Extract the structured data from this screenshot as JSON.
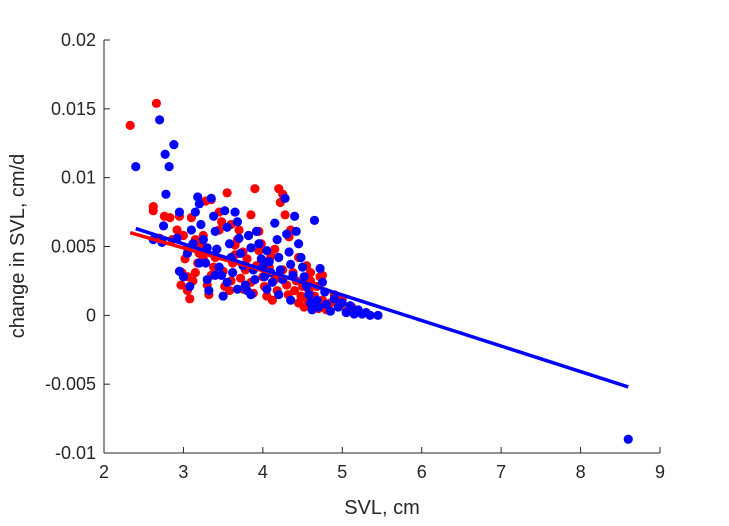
{
  "chart_data": {
    "type": "scatter",
    "title": "",
    "xlabel": "SVL, cm",
    "ylabel": "change in SVL, cm/d",
    "xlim": [
      2,
      9
    ],
    "ylim": [
      -0.01,
      0.02
    ],
    "xticks": [
      2,
      3,
      4,
      5,
      6,
      7,
      8,
      9
    ],
    "xtick_labels": [
      "2",
      "3",
      "4",
      "5",
      "6",
      "7",
      "8",
      "9"
    ],
    "yticks": [
      -0.01,
      -0.005,
      0,
      0.005,
      0.01,
      0.015,
      0.02
    ],
    "ytick_labels": [
      "-0.01",
      "-0.005",
      "0",
      "0.005",
      "0.01",
      "0.015",
      "0.02"
    ],
    "grid": false,
    "legend": "none",
    "series": [
      {
        "color": "#ff0000",
        "points": [
          [
            2.33,
            0.0138
          ],
          [
            2.66,
            0.0154
          ],
          [
            2.62,
            0.0079
          ],
          [
            2.62,
            0.0076
          ],
          [
            2.76,
            0.0072
          ],
          [
            2.83,
            0.0071
          ],
          [
            2.7,
            0.0056
          ],
          [
            2.86,
            0.0055
          ],
          [
            2.95,
            0.0072
          ],
          [
            2.92,
            0.0062
          ],
          [
            3.0,
            0.0058
          ],
          [
            3.02,
            0.0041
          ],
          [
            2.98,
            0.0031
          ],
          [
            3.05,
            0.0028
          ],
          [
            2.97,
            0.0022
          ],
          [
            3.05,
            0.0018
          ],
          [
            3.08,
            0.0012
          ],
          [
            3.12,
            0.0025
          ],
          [
            3.15,
            0.0031
          ],
          [
            3.18,
            0.0038
          ],
          [
            3.2,
            0.0045
          ],
          [
            3.22,
            0.0052
          ],
          [
            3.25,
            0.0058
          ],
          [
            3.28,
            0.0083
          ],
          [
            3.3,
            0.0022
          ],
          [
            3.32,
            0.0015
          ],
          [
            3.35,
            0.0029
          ],
          [
            3.38,
            0.0035
          ],
          [
            3.4,
            0.0042
          ],
          [
            3.42,
            0.0048
          ],
          [
            3.45,
            0.0075
          ],
          [
            3.48,
            0.0068
          ],
          [
            3.5,
            0.0032
          ],
          [
            3.52,
            0.0021
          ],
          [
            3.55,
            0.0089
          ],
          [
            3.58,
            0.0018
          ],
          [
            3.6,
            0.0025
          ],
          [
            3.62,
            0.0038
          ],
          [
            3.65,
            0.0044
          ],
          [
            3.68,
            0.0055
          ],
          [
            3.7,
            0.0062
          ],
          [
            3.72,
            0.0027
          ],
          [
            3.75,
            0.0019
          ],
          [
            3.78,
            0.0033
          ],
          [
            3.8,
            0.0041
          ],
          [
            3.82,
            0.0058
          ],
          [
            3.85,
            0.0024
          ],
          [
            3.88,
            0.0016
          ],
          [
            3.9,
            0.0092
          ],
          [
            3.92,
            0.0036
          ],
          [
            3.95,
            0.0047
          ],
          [
            3.98,
            0.0052
          ],
          [
            4.0,
            0.0028
          ],
          [
            4.02,
            0.0021
          ],
          [
            4.05,
            0.0014
          ],
          [
            4.08,
            0.0035
          ],
          [
            4.1,
            0.0043
          ],
          [
            4.12,
            0.0011
          ],
          [
            4.15,
            0.0026
          ],
          [
            4.18,
            0.0018
          ],
          [
            4.2,
            0.0092
          ],
          [
            4.22,
            0.0082
          ],
          [
            4.25,
            0.0088
          ],
          [
            4.28,
            0.0073
          ],
          [
            4.3,
            0.0022
          ],
          [
            4.32,
            0.0015
          ],
          [
            4.35,
            0.0062
          ],
          [
            4.38,
            0.0031
          ],
          [
            4.4,
            0.0018
          ],
          [
            4.42,
            0.0025
          ],
          [
            4.45,
            0.0009
          ],
          [
            4.48,
            0.0014
          ],
          [
            4.5,
            0.0021
          ],
          [
            4.52,
            0.0006
          ],
          [
            4.55,
            0.0012
          ],
          [
            4.58,
            0.0018
          ],
          [
            4.6,
            0.0025
          ],
          [
            4.62,
            0.0008
          ],
          [
            4.65,
            0.0014
          ],
          [
            4.68,
            0.0021
          ],
          [
            4.7,
            0.0005
          ],
          [
            4.72,
            0.0028
          ],
          [
            4.75,
            0.0011
          ],
          [
            4.78,
            0.0017
          ],
          [
            4.8,
            0.0004
          ],
          [
            4.85,
            0.0009
          ],
          [
            4.9,
            0.0015
          ],
          [
            4.95,
            0.0007
          ],
          [
            5.0,
            0.0012
          ],
          [
            5.05,
            0.0003
          ],
          [
            5.12,
            0.0006
          ],
          [
            3.1,
            0.0071
          ],
          [
            3.35,
            0.0084
          ],
          [
            3.6,
            0.0066
          ],
          [
            3.85,
            0.0073
          ],
          [
            4.33,
            0.0057
          ],
          [
            4.15,
            0.0048
          ],
          [
            3.95,
            0.0061
          ],
          [
            4.05,
            0.0039
          ],
          [
            4.25,
            0.0033
          ],
          [
            4.45,
            0.0042
          ],
          [
            4.55,
            0.0036
          ],
          [
            4.6,
            0.0031
          ],
          [
            4.75,
            0.0029
          ],
          [
            3.05,
            0.0049
          ],
          [
            3.15,
            0.0055
          ],
          [
            3.25,
            0.0041
          ],
          [
            3.45,
            0.0062
          ],
          [
            3.65,
            0.0051
          ],
          [
            3.75,
            0.0046
          ]
        ],
        "fit": {
          "x": [
            2.33,
            4.75
          ],
          "y": [
            0.006,
            0.002
          ]
        }
      },
      {
        "color": "#0000ff",
        "points": [
          [
            2.4,
            0.0108
          ],
          [
            2.7,
            0.0142
          ],
          [
            2.77,
            0.0117
          ],
          [
            2.82,
            0.0108
          ],
          [
            2.88,
            0.0124
          ],
          [
            2.78,
            0.0088
          ],
          [
            2.75,
            0.0065
          ],
          [
            2.73,
            0.0053
          ],
          [
            2.62,
            0.0055
          ],
          [
            2.95,
            0.0075
          ],
          [
            2.92,
            0.0056
          ],
          [
            2.95,
            0.0032
          ],
          [
            3.0,
            0.0028
          ],
          [
            3.05,
            0.0045
          ],
          [
            3.08,
            0.0021
          ],
          [
            3.12,
            0.0052
          ],
          [
            3.15,
            0.0075
          ],
          [
            3.18,
            0.0086
          ],
          [
            3.2,
            0.0081
          ],
          [
            3.22,
            0.0066
          ],
          [
            3.25,
            0.0055
          ],
          [
            3.28,
            0.0038
          ],
          [
            3.3,
            0.0026
          ],
          [
            3.32,
            0.0018
          ],
          [
            3.35,
            0.0085
          ],
          [
            3.38,
            0.0072
          ],
          [
            3.4,
            0.0061
          ],
          [
            3.42,
            0.0048
          ],
          [
            3.45,
            0.0035
          ],
          [
            3.48,
            0.0029
          ],
          [
            3.5,
            0.0014
          ],
          [
            3.52,
            0.0076
          ],
          [
            3.55,
            0.0064
          ],
          [
            3.58,
            0.0052
          ],
          [
            3.6,
            0.0042
          ],
          [
            3.62,
            0.0031
          ],
          [
            3.65,
            0.0075
          ],
          [
            3.68,
            0.0068
          ],
          [
            3.7,
            0.0056
          ],
          [
            3.72,
            0.0045
          ],
          [
            3.75,
            0.0036
          ],
          [
            3.78,
            0.0022
          ],
          [
            3.8,
            0.0018
          ],
          [
            3.82,
            0.0058
          ],
          [
            3.85,
            0.0049
          ],
          [
            3.88,
            0.0033
          ],
          [
            3.9,
            0.0026
          ],
          [
            3.92,
            0.0061
          ],
          [
            3.95,
            0.0052
          ],
          [
            3.98,
            0.0041
          ],
          [
            4.0,
            0.0035
          ],
          [
            4.02,
            0.0028
          ],
          [
            4.05,
            0.0047
          ],
          [
            4.08,
            0.0039
          ],
          [
            4.1,
            0.0031
          ],
          [
            4.12,
            0.0024
          ],
          [
            4.15,
            0.0067
          ],
          [
            4.18,
            0.0055
          ],
          [
            4.2,
            0.0042
          ],
          [
            4.22,
            0.0033
          ],
          [
            4.25,
            0.0026
          ],
          [
            4.28,
            0.0085
          ],
          [
            4.3,
            0.0059
          ],
          [
            4.33,
            0.0046
          ],
          [
            4.35,
            0.0037
          ],
          [
            4.38,
            0.0029
          ],
          [
            4.4,
            0.0072
          ],
          [
            4.42,
            0.0061
          ],
          [
            4.45,
            0.0052
          ],
          [
            4.48,
            0.0042
          ],
          [
            4.5,
            0.0035
          ],
          [
            4.52,
            0.0028
          ],
          [
            4.55,
            0.0021
          ],
          [
            4.58,
            0.0015
          ],
          [
            4.6,
            0.0009
          ],
          [
            4.62,
            0.0004
          ],
          [
            4.65,
            0.0069
          ],
          [
            4.68,
            0.0011
          ],
          [
            4.7,
            0.0006
          ],
          [
            4.72,
            0.0034
          ],
          [
            4.75,
            0.0024
          ],
          [
            4.78,
            0.0017
          ],
          [
            4.8,
            0.0008
          ],
          [
            4.85,
            0.0003
          ],
          [
            4.9,
            0.0012
          ],
          [
            4.95,
            0.0006
          ],
          [
            5.0,
            0.0009
          ],
          [
            5.05,
            0.0002
          ],
          [
            5.1,
            0.0007
          ],
          [
            5.15,
            0.0001
          ],
          [
            5.2,
            0.0004
          ],
          [
            5.25,
            0.0001
          ],
          [
            5.3,
            0.0002
          ],
          [
            5.35,
            0.0
          ],
          [
            5.45,
            0.0
          ],
          [
            3.1,
            0.0062
          ],
          [
            3.2,
            0.0038
          ],
          [
            3.3,
            0.0049
          ],
          [
            3.4,
            0.0029
          ],
          [
            3.55,
            0.0024
          ],
          [
            3.68,
            0.0019
          ],
          [
            3.85,
            0.0015
          ],
          [
            4.05,
            0.0019
          ],
          [
            4.2,
            0.0015
          ],
          [
            4.35,
            0.0011
          ],
          [
            8.6,
            -0.009
          ]
        ],
        "fit": {
          "x": [
            2.4,
            8.6
          ],
          "y": [
            0.0063,
            -0.0052
          ]
        }
      }
    ]
  }
}
